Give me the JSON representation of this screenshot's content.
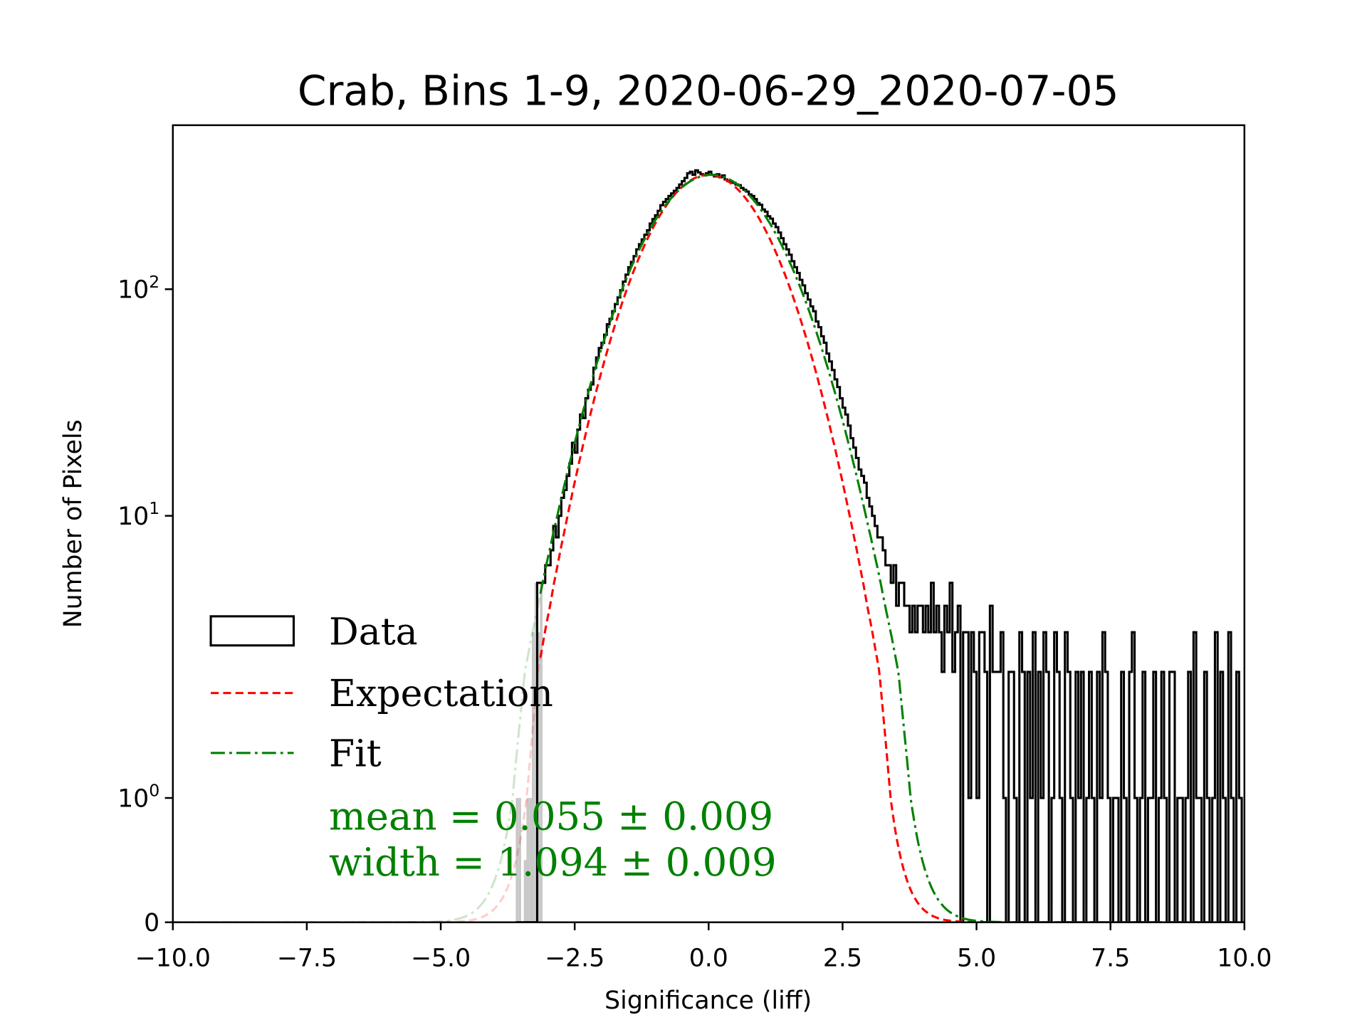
{
  "chart_data": {
    "type": "histogram",
    "title": "Crab, Bins 1-9, 2020-06-29_2020-07-05",
    "xlabel": "Significance (liff)",
    "ylabel": "Number of Pixels",
    "xlim": [
      -10,
      10
    ],
    "yscale": "symlog",
    "ylim": [
      0,
      530
    ],
    "x_ticks": [
      {
        "value": -10,
        "label": "−10.0"
      },
      {
        "value": -7.5,
        "label": "−7.5"
      },
      {
        "value": -5,
        "label": "−5.0"
      },
      {
        "value": -2.5,
        "label": "−2.5"
      },
      {
        "value": 0,
        "label": "0.0"
      },
      {
        "value": 2.5,
        "label": "2.5"
      },
      {
        "value": 5,
        "label": "5.0"
      },
      {
        "value": 7.5,
        "label": "7.5"
      },
      {
        "value": 10,
        "label": "10.0"
      }
    ],
    "y_ticks": [
      {
        "value": 0,
        "base": "0",
        "exp": ""
      },
      {
        "value": 1,
        "base": "10",
        "exp": "0"
      },
      {
        "value": 10,
        "base": "10",
        "exp": "1"
      },
      {
        "value": 100,
        "base": "10",
        "exp": "2"
      }
    ],
    "histogram": {
      "name": "Data",
      "bin_start": -3.6,
      "bin_width": 0.05,
      "counts": [
        0,
        0,
        0,
        0,
        0,
        0,
        0,
        0,
        5,
        5,
        5,
        6,
        6,
        7,
        9,
        8,
        10,
        12,
        13,
        15,
        17,
        21,
        19,
        24,
        28,
        27,
        33,
        36,
        38,
        45,
        50,
        55,
        58,
        63,
        70,
        74,
        80,
        86,
        92,
        99,
        108,
        116,
        125,
        132,
        140,
        150,
        158,
        166,
        174,
        182,
        195,
        204,
        212,
        222,
        235,
        243,
        250,
        258,
        265,
        272,
        280,
        290,
        300,
        310,
        325,
        330,
        320,
        335,
        328,
        322,
        318,
        325,
        330,
        320,
        315,
        322,
        312,
        318,
        305,
        300,
        298,
        295,
        290,
        288,
        280,
        275,
        270,
        262,
        258,
        250,
        240,
        236,
        225,
        220,
        210,
        205,
        195,
        188,
        178,
        168,
        158,
        150,
        142,
        133,
        125,
        118,
        110,
        104,
        96,
        90,
        84,
        80,
        72,
        68,
        62,
        58,
        52,
        48,
        44,
        40,
        37,
        33,
        30,
        28,
        25,
        22,
        20,
        18,
        16,
        15,
        14,
        12,
        11,
        10,
        9,
        8,
        8,
        7,
        6,
        6,
        5,
        6,
        4,
        5,
        5,
        4,
        4,
        3,
        4,
        3,
        4,
        4,
        3,
        4,
        3,
        5,
        3,
        4,
        3,
        2,
        4,
        3,
        5,
        2,
        3,
        4,
        0,
        3,
        3,
        1,
        3,
        2,
        1,
        3,
        3,
        2,
        0,
        4,
        2,
        2,
        2,
        3,
        1,
        0,
        2,
        2,
        1,
        0,
        3,
        2,
        0,
        2,
        1,
        3,
        0,
        2,
        1,
        3,
        2,
        0,
        1,
        3,
        2,
        1,
        0,
        3,
        2,
        1,
        0,
        2,
        1,
        2,
        0,
        1,
        2,
        1,
        0,
        2,
        1,
        3,
        2,
        1,
        0,
        1,
        1,
        0,
        2,
        1,
        0,
        2,
        3,
        1,
        0,
        1,
        2,
        0,
        1,
        1,
        2,
        0,
        1,
        2,
        1,
        0,
        2,
        2,
        0,
        1,
        1,
        0,
        1,
        2,
        0,
        3,
        1,
        1,
        0,
        2,
        1,
        0,
        1,
        3,
        0,
        2,
        1,
        0,
        3,
        1,
        0,
        2,
        1,
        0
      ]
    },
    "masked_bins": {
      "bin_start": -3.6,
      "bin_width": 0.05,
      "counts": [
        1,
        1,
        0,
        0.5,
        1,
        1,
        3,
        5,
        3,
        5
      ],
      "color": "#c8c8c8"
    },
    "series": [
      {
        "name": "Expectation",
        "kind": "gaussian",
        "amplitude": 320,
        "mean": 0.0,
        "sigma": 1.0,
        "color": "#ff0000",
        "style": "dashed"
      },
      {
        "name": "Fit",
        "kind": "gaussian",
        "amplitude": 320,
        "mean": 0.055,
        "sigma": 1.094,
        "color": "#008000",
        "style": "dashdot"
      }
    ],
    "legend": {
      "placement": "center-left",
      "entries": [
        "Data",
        "Expectation",
        "Fit"
      ]
    },
    "annotations": {
      "mean": "mean = 0.055 ± 0.009",
      "width": "width = 1.094 ± 0.009",
      "color": "#008000"
    },
    "grid": false
  }
}
